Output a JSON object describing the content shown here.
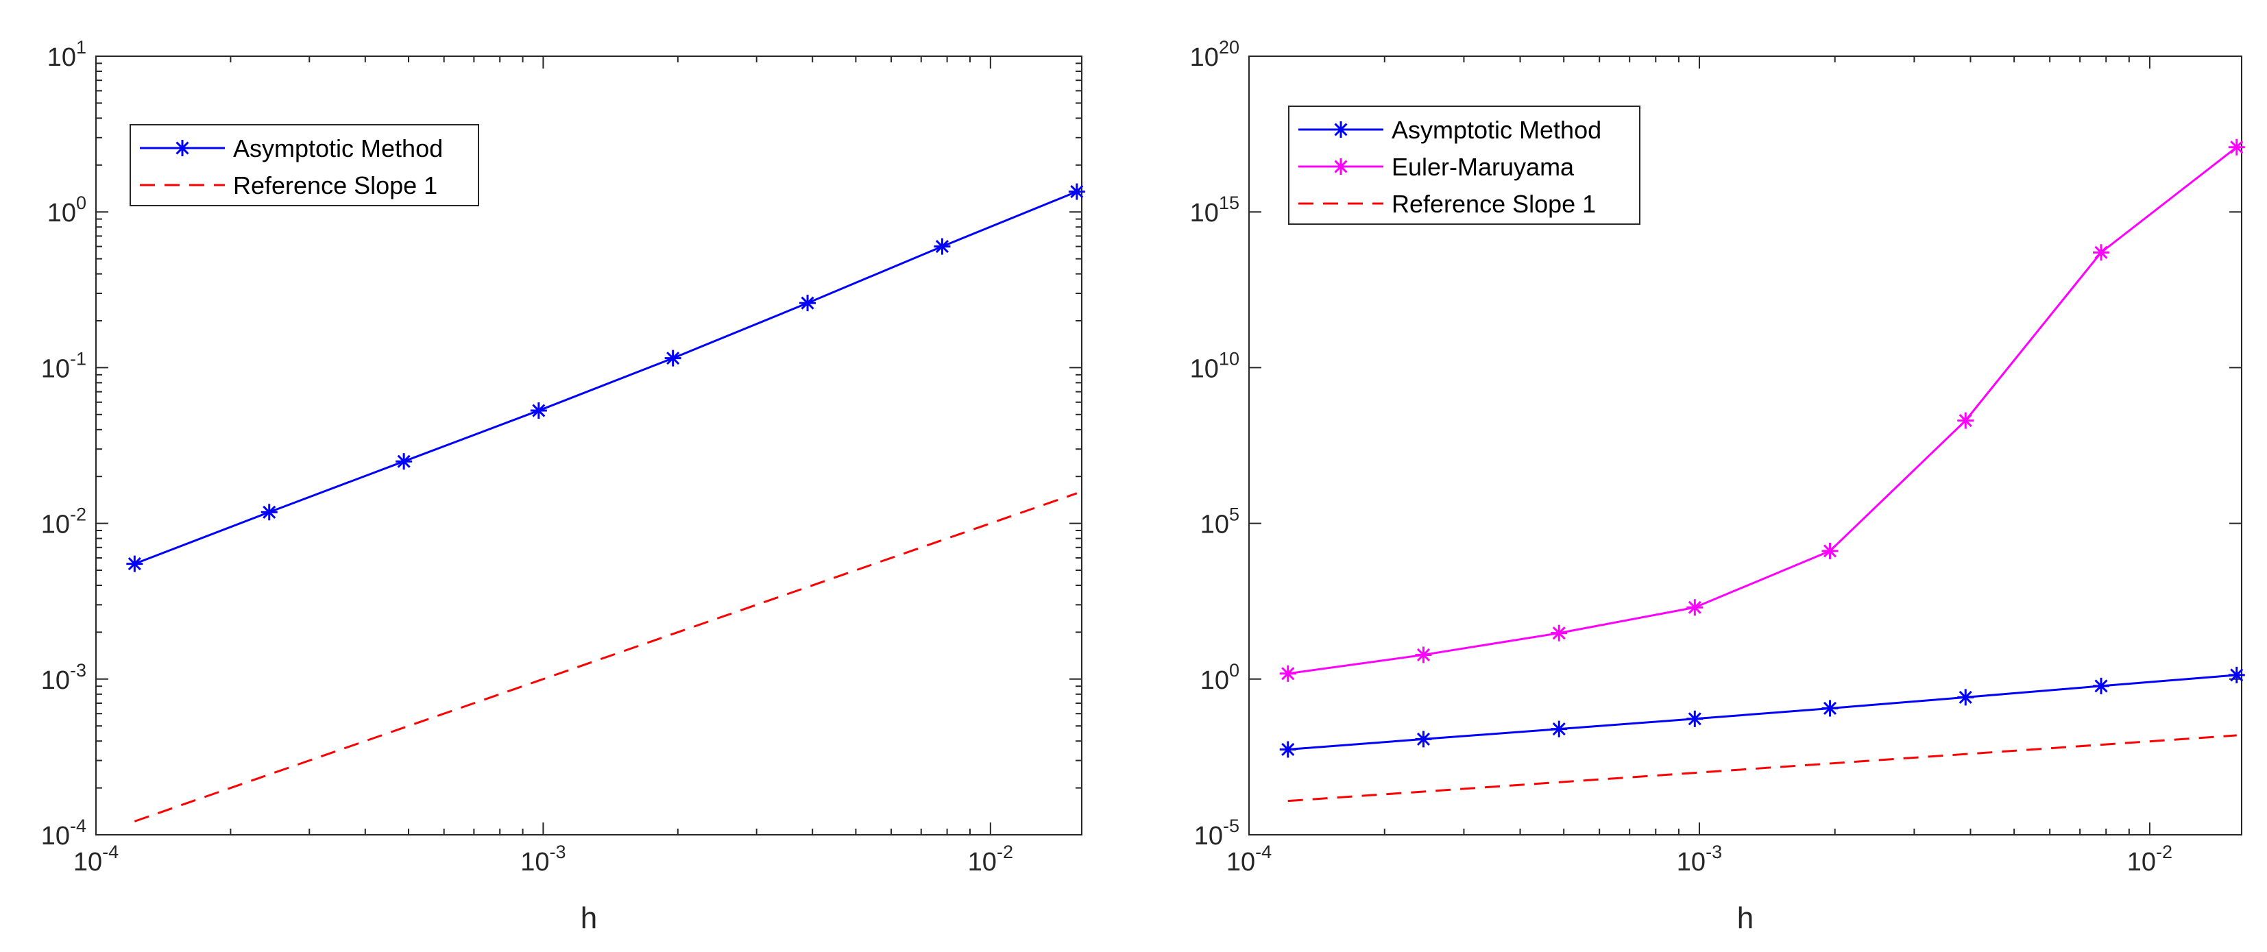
{
  "chart_data": [
    {
      "type": "line",
      "title": "",
      "xlabel": "h",
      "ylabel": "",
      "xscale": "log",
      "yscale": "log",
      "xlim": [
        0.0001,
        0.016
      ],
      "ylim": [
        0.0001,
        10
      ],
      "x_ticks": [
        {
          "value": 0.0001,
          "base": "10",
          "exp": "-4"
        },
        {
          "value": 0.001,
          "base": "10",
          "exp": "-3"
        },
        {
          "value": 0.01,
          "base": "10",
          "exp": "-2"
        }
      ],
      "y_ticks": [
        {
          "value": 0.0001,
          "base": "10",
          "exp": "-4"
        },
        {
          "value": 0.001,
          "base": "10",
          "exp": "-3"
        },
        {
          "value": 0.01,
          "base": "10",
          "exp": "-2"
        },
        {
          "value": 0.1,
          "base": "10",
          "exp": "-1"
        },
        {
          "value": 1,
          "base": "10",
          "exp": "0"
        },
        {
          "value": 10,
          "base": "10",
          "exp": "1"
        }
      ],
      "grid": false,
      "legend_position": "top-left",
      "x": [
        0.000122,
        0.000244,
        0.000488,
        0.000977,
        0.00195,
        0.0039,
        0.0078,
        0.0156
      ],
      "series": [
        {
          "name": "Asymptotic Method",
          "color": "#0000ff",
          "style": "solid",
          "marker": "asterisk",
          "values": [
            0.0055,
            0.0118,
            0.025,
            0.053,
            0.115,
            0.26,
            0.6,
            1.35
          ]
        },
        {
          "name": "Reference Slope 1",
          "color": "#ff0000",
          "style": "dashed",
          "marker": "none",
          "values": [
            0.000122,
            0.000244,
            0.000488,
            0.000977,
            0.00195,
            0.0039,
            0.0078,
            0.0156
          ]
        }
      ]
    },
    {
      "type": "line",
      "title": "",
      "xlabel": "h",
      "ylabel": "",
      "xscale": "log",
      "yscale": "log",
      "xlim": [
        0.0001,
        0.016
      ],
      "ylim": [
        1e-05,
        1e+20
      ],
      "x_ticks": [
        {
          "value": 0.0001,
          "base": "10",
          "exp": "-4"
        },
        {
          "value": 0.001,
          "base": "10",
          "exp": "-3"
        },
        {
          "value": 0.01,
          "base": "10",
          "exp": "-2"
        }
      ],
      "y_ticks": [
        {
          "value": 1e-05,
          "base": "10",
          "exp": "-5"
        },
        {
          "value": 1,
          "base": "10",
          "exp": "0"
        },
        {
          "value": 100000.0,
          "base": "10",
          "exp": "5"
        },
        {
          "value": 10000000000.0,
          "base": "10",
          "exp": "10"
        },
        {
          "value": 1000000000000000.0,
          "base": "10",
          "exp": "15"
        },
        {
          "value": 1e+20,
          "base": "10",
          "exp": "20"
        }
      ],
      "grid": false,
      "legend_position": "top-left",
      "x": [
        0.000122,
        0.000244,
        0.000488,
        0.000977,
        0.00195,
        0.0039,
        0.0078,
        0.0156
      ],
      "series": [
        {
          "name": "Asymptotic Method",
          "color": "#0000ff",
          "style": "solid",
          "marker": "asterisk",
          "values": [
            0.0055,
            0.0118,
            0.025,
            0.053,
            0.115,
            0.26,
            0.6,
            1.35
          ]
        },
        {
          "name": "Euler-Maruyama",
          "color": "#ff00ff",
          "style": "solid",
          "marker": "asterisk",
          "values": [
            1.5,
            6,
            30,
            200,
            13000,
            200000000.0,
            50000000000000.0,
            1.2e+17
          ]
        },
        {
          "name": "Reference Slope 1",
          "color": "#ff0000",
          "style": "dashed",
          "marker": "none",
          "values": [
            0.000122,
            0.000244,
            0.000488,
            0.000977,
            0.00195,
            0.0039,
            0.0078,
            0.0156
          ]
        }
      ]
    }
  ]
}
